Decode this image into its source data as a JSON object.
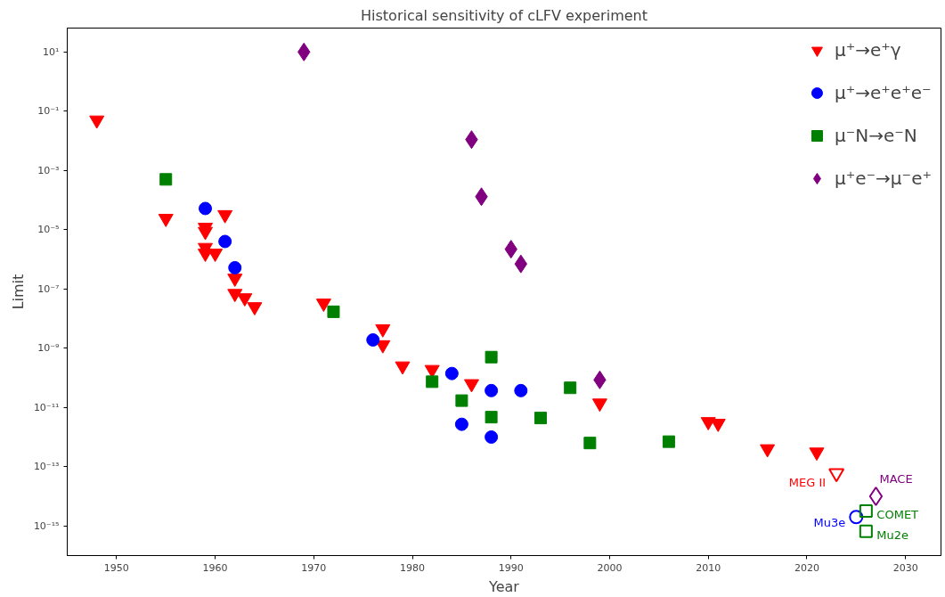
{
  "chart_data": {
    "type": "scatter",
    "title": "Historical sensitivity of cLFV experiment",
    "xlabel": "Year",
    "ylabel": "Limit",
    "log": "y",
    "grid": false,
    "legend": "top right",
    "xlim": [
      1945,
      2033.6
    ],
    "xticks": [
      1950,
      1960,
      1970,
      1980,
      1990,
      2000,
      2010,
      2020,
      2030
    ],
    "ylim": [
      1e-16,
      64
    ],
    "yticks": [
      {
        "value": 10,
        "label": "10¹"
      },
      {
        "value": 0.1,
        "label": "10⁻¹"
      },
      {
        "value": 0.001,
        "label": "10⁻³"
      },
      {
        "value": 1e-05,
        "label": "10⁻⁵"
      },
      {
        "value": 1e-07,
        "label": "10⁻⁷"
      },
      {
        "value": 1e-09,
        "label": "10⁻⁹"
      },
      {
        "value": 1e-11,
        "label": "10⁻¹¹"
      },
      {
        "value": 1e-13,
        "label": "10⁻¹³"
      },
      {
        "value": 1e-15,
        "label": "10⁻¹⁵"
      }
    ],
    "series": [
      {
        "name": "μ⁺→e⁺γ",
        "color": "#ff0000",
        "marker": "triangle",
        "x": [
          1948,
          1955,
          1959,
          1959,
          1959,
          1959,
          1960,
          1961,
          1962,
          1962,
          1963,
          1964,
          1971,
          1977,
          1977,
          1979,
          1982,
          1986,
          1999,
          2010,
          2011,
          2016,
          2021
        ],
        "values": [
          0.05,
          2.4e-05,
          1.2e-05,
          8.7e-06,
          2.5e-06,
          1.6e-06,
          1.6e-06,
          3.2e-05,
          2.3e-07,
          7e-08,
          5e-08,
          2.5e-08,
          3.3e-08,
          4.5e-09,
          1.3e-09,
          2.5e-10,
          1.9e-10,
          6.3e-11,
          1.4e-11,
          3.3e-12,
          2.9e-12,
          4e-13,
          3.1e-13
        ]
      },
      {
        "name": "μ⁺→e⁺e⁺e⁻",
        "color": "#0000ff",
        "marker": "circle",
        "x": [
          1959,
          1961,
          1962,
          1976,
          1984,
          1985,
          1988,
          1988,
          1991
        ],
        "values": [
          5.2e-05,
          4e-06,
          5.2e-07,
          1.9e-09,
          1.4e-10,
          2.7e-12,
          3.7e-11,
          1e-12,
          3.7e-11
        ]
      },
      {
        "name": "μ⁻N→e⁻N",
        "color": "#008000",
        "marker": "square",
        "x": [
          1955,
          1972,
          1982,
          1985,
          1988,
          1988,
          1993,
          1996,
          1998,
          2006
        ],
        "values": [
          0.0005,
          1.7e-08,
          7.4e-11,
          1.7e-11,
          5e-10,
          4.7e-12,
          4.4e-12,
          4.6e-11,
          6.3e-13,
          7e-13
        ]
      },
      {
        "name": "μ⁺e⁻→μ⁻e⁺",
        "color": "#800080",
        "marker": "diamond",
        "x": [
          1969,
          1986,
          1987,
          1990,
          1991,
          1999
        ],
        "values": [
          10,
          0.011,
          0.00013,
          2.2e-06,
          7e-07,
          8.5e-11
        ]
      },
      {
        "color": "#ff0000",
        "marker": "triangle",
        "x": [
          2023
        ],
        "values": [
          6e-14
        ]
      },
      {
        "color": "#0000ff",
        "marker": "circle",
        "x": [
          2025
        ],
        "values": [
          2e-15
        ]
      },
      {
        "color": "#008000",
        "marker": "square",
        "x": [
          2026,
          2026
        ],
        "values": [
          3.2e-15,
          6.6e-16
        ]
      },
      {
        "color": "#800080",
        "marker": "diamond",
        "x": [
          2027
        ],
        "values": [
          1e-14
        ]
      }
    ],
    "annotations": [
      {
        "text": "MEG II",
        "x": 2023,
        "y": 6e-14
      },
      {
        "text": "Mu3e",
        "x": 2025,
        "y": 2e-15
      },
      {
        "text": "COMET",
        "x": 2026,
        "y": 3.2e-15
      },
      {
        "text": "Mu2e",
        "x": 2026,
        "y": 6.6e-16
      },
      {
        "text": "MACE",
        "x": 2027,
        "y": 1e-14
      }
    ]
  }
}
